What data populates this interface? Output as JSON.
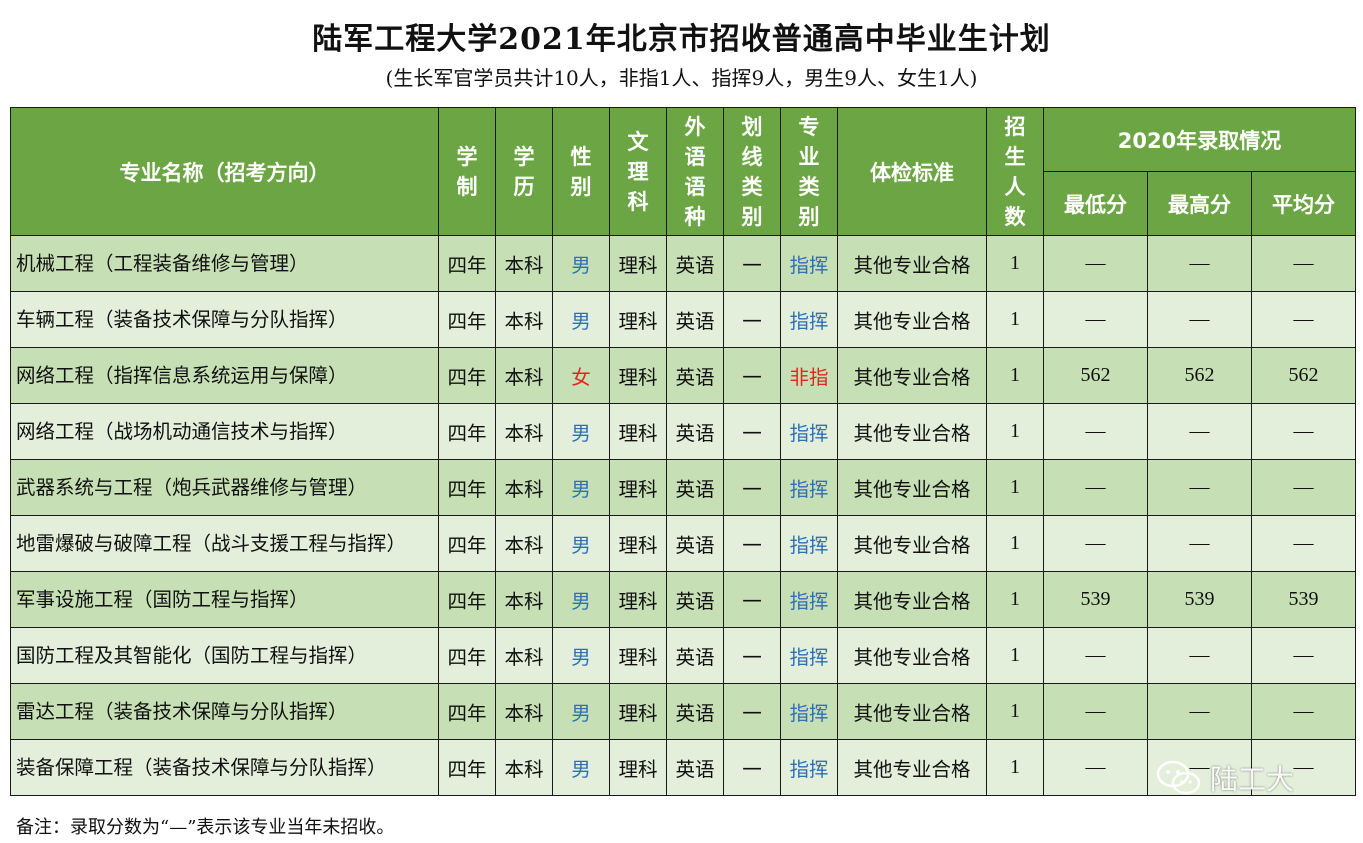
{
  "title": "陆军工程大学2021年北京市招收普通高中毕业生计划",
  "subtitle": "(生长军官学员共计10人，非指1人、指挥9人，男生9人、女生1人)",
  "header": {
    "name": "专业名称（招考方向）",
    "xuezhi": [
      "学",
      "制"
    ],
    "xueli": [
      "学",
      "历"
    ],
    "xingbie": [
      "性",
      "别"
    ],
    "wenli": [
      "文",
      "理",
      "科"
    ],
    "waiyu": [
      "外",
      "语",
      "语",
      "种"
    ],
    "huaxian": [
      "划",
      "线",
      "类",
      "别"
    ],
    "zhuanye": [
      "专",
      "业",
      "类",
      "别"
    ],
    "tijian": "体检标准",
    "zhaosheng": [
      "招",
      "生",
      "人",
      "数"
    ],
    "luqu": "2020年录取情况",
    "min": "最低分",
    "max": "最高分",
    "avg": "平均分"
  },
  "colors": {
    "header_bg": "#6ca544",
    "row_odd": "#c6dfb4",
    "row_even": "#e3eedb",
    "male_blue": "#2e6fb7",
    "female_red": "#e0261c"
  },
  "rows": [
    {
      "name": "机械工程（工程装备维修与管理）",
      "xuezhi": "四年",
      "xueli": "本科",
      "xingbie": "男",
      "wenli": "理科",
      "waiyu": "英语",
      "huaxian": "一",
      "zhuanye": "指挥",
      "tijian": "其他专业合格",
      "zhaosheng": "1",
      "min": "—",
      "max": "—",
      "avg": "—"
    },
    {
      "name": "车辆工程（装备技术保障与分队指挥）",
      "xuezhi": "四年",
      "xueli": "本科",
      "xingbie": "男",
      "wenli": "理科",
      "waiyu": "英语",
      "huaxian": "一",
      "zhuanye": "指挥",
      "tijian": "其他专业合格",
      "zhaosheng": "1",
      "min": "—",
      "max": "—",
      "avg": "—"
    },
    {
      "name": "网络工程（指挥信息系统运用与保障）",
      "xuezhi": "四年",
      "xueli": "本科",
      "xingbie": "女",
      "wenli": "理科",
      "waiyu": "英语",
      "huaxian": "一",
      "zhuanye": "非指",
      "tijian": "其他专业合格",
      "zhaosheng": "1",
      "min": "562",
      "max": "562",
      "avg": "562"
    },
    {
      "name": "网络工程（战场机动通信技术与指挥）",
      "xuezhi": "四年",
      "xueli": "本科",
      "xingbie": "男",
      "wenli": "理科",
      "waiyu": "英语",
      "huaxian": "一",
      "zhuanye": "指挥",
      "tijian": "其他专业合格",
      "zhaosheng": "1",
      "min": "—",
      "max": "—",
      "avg": "—"
    },
    {
      "name": "武器系统与工程（炮兵武器维修与管理）",
      "xuezhi": "四年",
      "xueli": "本科",
      "xingbie": "男",
      "wenli": "理科",
      "waiyu": "英语",
      "huaxian": "一",
      "zhuanye": "指挥",
      "tijian": "其他专业合格",
      "zhaosheng": "1",
      "min": "—",
      "max": "—",
      "avg": "—"
    },
    {
      "name": "地雷爆破与破障工程（战斗支援工程与指挥）",
      "xuezhi": "四年",
      "xueli": "本科",
      "xingbie": "男",
      "wenli": "理科",
      "waiyu": "英语",
      "huaxian": "一",
      "zhuanye": "指挥",
      "tijian": "其他专业合格",
      "zhaosheng": "1",
      "min": "—",
      "max": "—",
      "avg": "—"
    },
    {
      "name": "军事设施工程（国防工程与指挥）",
      "xuezhi": "四年",
      "xueli": "本科",
      "xingbie": "男",
      "wenli": "理科",
      "waiyu": "英语",
      "huaxian": "一",
      "zhuanye": "指挥",
      "tijian": "其他专业合格",
      "zhaosheng": "1",
      "min": "539",
      "max": "539",
      "avg": "539"
    },
    {
      "name": "国防工程及其智能化（国防工程与指挥）",
      "xuezhi": "四年",
      "xueli": "本科",
      "xingbie": "男",
      "wenli": "理科",
      "waiyu": "英语",
      "huaxian": "一",
      "zhuanye": "指挥",
      "tijian": "其他专业合格",
      "zhaosheng": "1",
      "min": "—",
      "max": "—",
      "avg": "—"
    },
    {
      "name": "雷达工程（装备技术保障与分队指挥）",
      "xuezhi": "四年",
      "xueli": "本科",
      "xingbie": "男",
      "wenli": "理科",
      "waiyu": "英语",
      "huaxian": "一",
      "zhuanye": "指挥",
      "tijian": "其他专业合格",
      "zhaosheng": "1",
      "min": "—",
      "max": "—",
      "avg": "—"
    },
    {
      "name": "装备保障工程（装备技术保障与分队指挥）",
      "xuezhi": "四年",
      "xueli": "本科",
      "xingbie": "男",
      "wenli": "理科",
      "waiyu": "英语",
      "huaxian": "一",
      "zhuanye": "指挥",
      "tijian": "其他专业合格",
      "zhaosheng": "1",
      "min": "—",
      "max": "—",
      "avg": "—"
    }
  ],
  "note": "备注：录取分数为“—”表示该专业当年未招收。",
  "watermark": {
    "text": "陆工大",
    "icon": "wechat-icon"
  }
}
